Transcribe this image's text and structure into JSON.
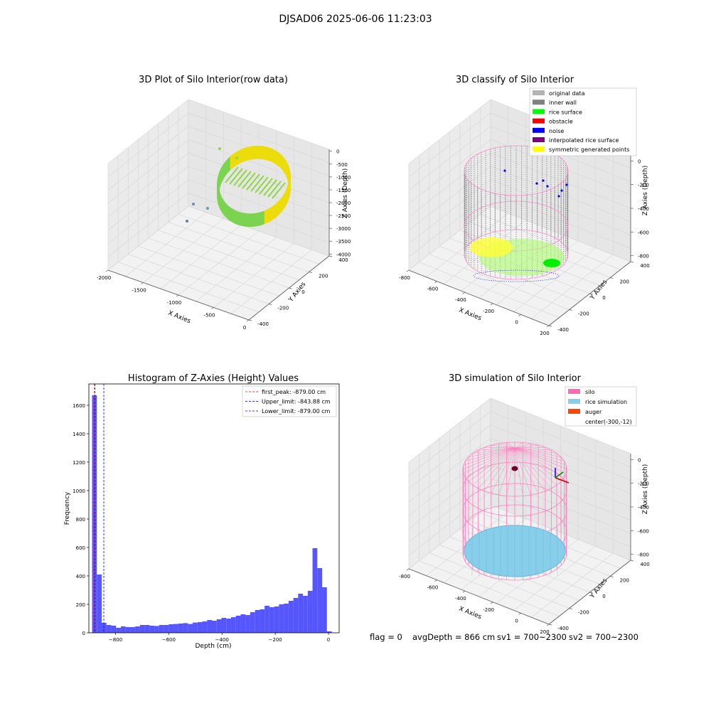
{
  "figure": {
    "suptitle": "DJSAD06 2025-06-06 11:23:03",
    "footer": {
      "flag": "flag = 0",
      "avg_depth": "avgDepth = 866 cm",
      "sv1": "sv1 = 700~2300",
      "sv2": "sv2 = 700~2300"
    }
  },
  "chart_data": [
    {
      "type": "scatter3d",
      "title": "3D Plot of Silo Interior(row data)",
      "xlabel": "X Axies",
      "ylabel": "Y Axies",
      "zlabel": "Z Axies (Depth)",
      "x_ticks": [
        "-2000",
        "-1500",
        "-1000",
        "-500",
        "0"
      ],
      "y_ticks": [
        "-400",
        "-200",
        "0",
        "200",
        "400"
      ],
      "z_ticks": [
        "0",
        "-500",
        "-1000",
        "-1500",
        "-2000",
        "-2500",
        "-3000",
        "-3500",
        "-4000"
      ],
      "xlim": [
        -2100,
        100
      ],
      "ylim": [
        -450,
        450
      ],
      "zlim": [
        -4100,
        0
      ],
      "colormap": "viridis",
      "grid": true,
      "outlier_points": [
        {
          "x": -1950,
          "y": 100,
          "z": -200
        },
        {
          "x": -1900,
          "y": 300,
          "z": -300
        },
        {
          "x": -2000,
          "y": -300,
          "z": -3000
        },
        {
          "x": -1700,
          "y": -300,
          "z": -3300
        },
        {
          "x": -2050,
          "y": -350,
          "z": -3800
        }
      ]
    },
    {
      "type": "scatter3d",
      "title": "3D classify of Silo Interior",
      "xlabel": "X Axies",
      "ylabel": "Y Axies",
      "zlabel": "Z Axies (Depth)",
      "x_ticks": [
        "-800",
        "-600",
        "-400",
        "-200",
        "0",
        "200"
      ],
      "y_ticks": [
        "-400",
        "-200",
        "0",
        "200",
        "400"
      ],
      "z_ticks": [
        "0",
        "-200",
        "-400",
        "-600",
        "-800"
      ],
      "xlim": [
        -850,
        250
      ],
      "ylim": [
        -450,
        450
      ],
      "zlim": [
        -900,
        50
      ],
      "grid": true,
      "legend_position": "top-right",
      "legend": [
        {
          "label": "original data",
          "color": "#b3b3b3"
        },
        {
          "label": "inner wall",
          "color": "#808080"
        },
        {
          "label": "rice surface",
          "color": "#00ff00"
        },
        {
          "label": "obstacle",
          "color": "#ff0000"
        },
        {
          "label": "noise",
          "color": "#0000ff"
        },
        {
          "label": "interpolated rice surface",
          "color": "#800080"
        },
        {
          "label": "symmetric generated points",
          "color": "#ffff00"
        }
      ]
    },
    {
      "type": "bar",
      "title": "Histogram of Z-Axies (Height) Values",
      "xlabel": "Depth (cm)",
      "ylabel": "Frequency",
      "xlim": [
        -900,
        40
      ],
      "ylim": [
        0,
        1750
      ],
      "x_ticks": [
        -800,
        -600,
        -400,
        -200,
        0
      ],
      "y_ticks": [
        0,
        200,
        400,
        600,
        800,
        1000,
        1200,
        1400,
        1600
      ],
      "bar_color": "#4d4dff",
      "bin_width": 18,
      "bin_start": -888,
      "values": [
        1670,
        410,
        70,
        55,
        50,
        35,
        45,
        40,
        40,
        45,
        55,
        55,
        50,
        48,
        55,
        55,
        60,
        62,
        65,
        68,
        62,
        72,
        75,
        80,
        90,
        85,
        95,
        105,
        100,
        110,
        120,
        130,
        125,
        145,
        160,
        165,
        190,
        180,
        185,
        200,
        205,
        225,
        245,
        275,
        260,
        295,
        595,
        455,
        320,
        10
      ],
      "legend_position": "top-right",
      "lines": [
        {
          "label": "first_peak: -879.00 cm",
          "x": -879,
          "color": "#ff0000"
        },
        {
          "label": "Upper_limit: -843.88 cm",
          "x": -843.88,
          "color": "#0000ff"
        },
        {
          "label": "Lower_limit: -879.00 cm",
          "x": -879,
          "color": "#0000ff"
        }
      ]
    },
    {
      "type": "surface3d",
      "title": "3D simulation of Silo Interior",
      "xlabel": "X Axies",
      "ylabel": "Y Axies",
      "zlabel": "Z Axies (Depth)",
      "x_ticks": [
        "-800",
        "-600",
        "-400",
        "-200",
        "0",
        "200"
      ],
      "y_ticks": [
        "-400",
        "-200",
        "0",
        "200",
        "400"
      ],
      "z_ticks": [
        "0",
        "-200",
        "-400",
        "-600",
        "-800"
      ],
      "grid": true,
      "legend_position": "top-right",
      "legend": [
        {
          "label": "silo",
          "color": "#ff69b4"
        },
        {
          "label": "rice simulation",
          "color": "#87ceeb"
        },
        {
          "label": "auger",
          "color": "#ff4500"
        },
        {
          "label": "center(-300,-12)",
          "color": ""
        }
      ]
    }
  ]
}
